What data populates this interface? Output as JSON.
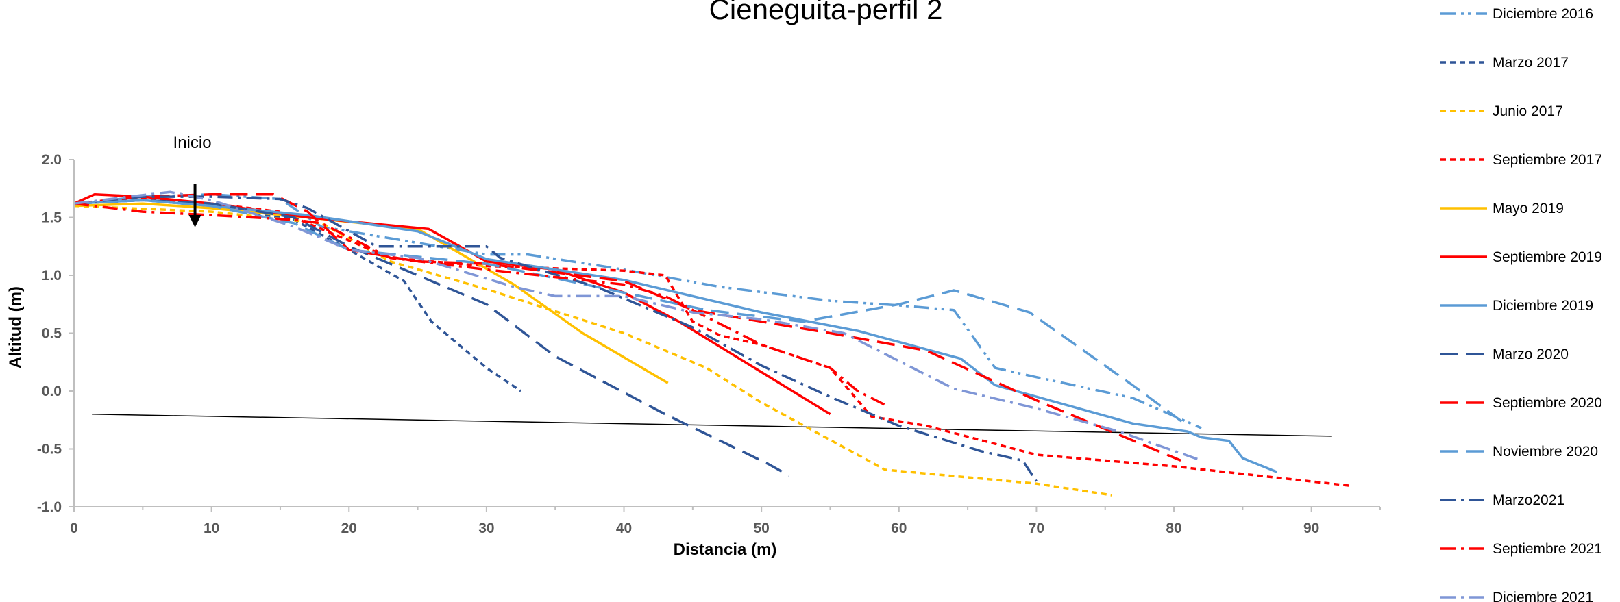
{
  "chart_data": {
    "type": "line",
    "title": "Cieneguita-perfil 2",
    "xlabel": "Distancia (m)",
    "ylabel": "Altitud (m)",
    "xlim": [
      0,
      95
    ],
    "ylim": [
      -1.0,
      2.0
    ],
    "xticks": [
      "0",
      "10",
      "20",
      "30",
      "40",
      "50",
      "60",
      "70",
      "80",
      "90"
    ],
    "yticks": [
      "-1.0",
      "-0.5",
      "0.0",
      "0.5",
      "1.0",
      "1.5",
      "2.0"
    ],
    "grid": false,
    "legend_position": "right",
    "annotation": {
      "text": "Inicio",
      "x": 8.8,
      "y": 1.78
    },
    "reference_line": {
      "x": [
        1.3,
        91.5
      ],
      "y": [
        -0.2,
        -0.39
      ],
      "color": "#000000"
    },
    "series": [
      {
        "name": "Diciembre 2016",
        "color": "#5b9bd5",
        "dash": "dashdotdot",
        "x": [
          0,
          5,
          10,
          15,
          18,
          25,
          30,
          33,
          40,
          47,
          55,
          60,
          64,
          67,
          70,
          77,
          82
        ],
        "y": [
          1.62,
          1.68,
          1.7,
          1.66,
          1.42,
          1.28,
          1.18,
          1.18,
          1.05,
          0.9,
          0.78,
          0.74,
          0.7,
          0.2,
          0.12,
          -0.06,
          -0.32
        ]
      },
      {
        "name": "Marzo 2017",
        "color": "#2f5597",
        "dash": "shortdash",
        "x": [
          0,
          5,
          10,
          16,
          20,
          24,
          26,
          30,
          32.5
        ],
        "y": [
          1.62,
          1.65,
          1.6,
          1.48,
          1.22,
          0.95,
          0.6,
          0.2,
          0.0
        ]
      },
      {
        "name": "Junio 2017",
        "color": "#ffc000",
        "dash": "shortdash",
        "x": [
          0,
          10,
          18,
          23,
          30,
          40,
          46,
          50,
          59,
          70,
          75.5
        ],
        "y": [
          1.6,
          1.55,
          1.45,
          1.12,
          0.88,
          0.5,
          0.2,
          -0.1,
          -0.68,
          -0.8,
          -0.9
        ]
      },
      {
        "name": "Septiembre 2017",
        "color": "#ff0000",
        "dash": "shortdash",
        "x": [
          0,
          5,
          10,
          15,
          18,
          23,
          30,
          40,
          43,
          45,
          47,
          50,
          55,
          58,
          62,
          70,
          80,
          93
        ],
        "y": [
          1.62,
          1.66,
          1.62,
          1.55,
          1.4,
          1.15,
          1.08,
          1.04,
          1.0,
          0.6,
          0.48,
          0.4,
          0.2,
          -0.22,
          -0.3,
          -0.55,
          -0.65,
          -0.82
        ]
      },
      {
        "name": "Mayo 2019",
        "color": "#ffc000",
        "dash": "solid",
        "x": [
          0,
          5,
          10,
          17,
          25,
          32,
          37,
          43.2
        ],
        "y": [
          1.6,
          1.62,
          1.58,
          1.5,
          1.4,
          0.92,
          0.5,
          0.07
        ]
      },
      {
        "name": "Septiembre 2019",
        "color": "#ff0000",
        "dash": "solid",
        "x": [
          0,
          1.5,
          5,
          10,
          17,
          25.8,
          30,
          35,
          40,
          44,
          55
        ],
        "y": [
          1.62,
          1.7,
          1.68,
          1.62,
          1.5,
          1.4,
          1.12,
          1.05,
          0.85,
          0.6,
          -0.2
        ]
      },
      {
        "name": "Diciembre 2019",
        "color": "#5b9bd5",
        "dash": "solid",
        "x": [
          0,
          5,
          10,
          17,
          25,
          30,
          40,
          50,
          57,
          64.5,
          67,
          77,
          81,
          82,
          84,
          85,
          87.5
        ],
        "y": [
          1.62,
          1.65,
          1.6,
          1.52,
          1.38,
          1.14,
          0.96,
          0.68,
          0.52,
          0.28,
          0.05,
          -0.28,
          -0.35,
          -0.4,
          -0.43,
          -0.58,
          -0.7
        ]
      },
      {
        "name": "Marzo 2020",
        "color": "#2f5597",
        "dash": "longdash",
        "x": [
          0,
          5,
          10,
          16,
          20,
          25,
          30,
          35,
          43,
          50.5,
          52
        ],
        "y": [
          1.62,
          1.65,
          1.62,
          1.5,
          1.25,
          1.0,
          0.75,
          0.3,
          -0.2,
          -0.63,
          -0.73
        ]
      },
      {
        "name": "Septiembre 2020",
        "color": "#ff0000",
        "dash": "longdash",
        "x": [
          0,
          5,
          10,
          14.5,
          17,
          20,
          25,
          30,
          40,
          45,
          55,
          62,
          70,
          80.5
        ],
        "y": [
          1.62,
          1.68,
          1.7,
          1.7,
          1.55,
          1.22,
          1.12,
          1.1,
          0.95,
          0.7,
          0.5,
          0.35,
          -0.08,
          -0.6
        ]
      },
      {
        "name": "Noviembre 2020",
        "color": "#5b9bd5",
        "dash": "longdash",
        "x": [
          0,
          5,
          10,
          16,
          20,
          30,
          40,
          46,
          53,
          60,
          64,
          69.5,
          77,
          81
        ],
        "y": [
          1.62,
          1.65,
          1.6,
          1.45,
          1.22,
          1.1,
          0.85,
          0.7,
          0.6,
          0.75,
          0.87,
          0.68,
          0.05,
          -0.3
        ]
      },
      {
        "name": "Marzo2021",
        "color": "#2f5597",
        "dash": "dashdot",
        "x": [
          0,
          5,
          10,
          15,
          17,
          22,
          30,
          31,
          38,
          45,
          50,
          55,
          60,
          66,
          69,
          70
        ],
        "y": [
          1.62,
          1.68,
          1.68,
          1.66,
          1.58,
          1.25,
          1.25,
          1.15,
          0.9,
          0.55,
          0.22,
          -0.05,
          -0.3,
          -0.52,
          -0.6,
          -0.78
        ]
      },
      {
        "name": "Septiembre 2021",
        "color": "#ff0000",
        "dash": "dashdot",
        "x": [
          0,
          5,
          10,
          16,
          18,
          23,
          30,
          40,
          43,
          50,
          55,
          57,
          59
        ],
        "y": [
          1.62,
          1.55,
          1.52,
          1.48,
          1.45,
          1.15,
          1.05,
          0.92,
          0.82,
          0.4,
          0.2,
          0.0,
          -0.12
        ]
      },
      {
        "name": "Diciembre 2021",
        "color": "#7f96d6",
        "dash": "dashdot",
        "x": [
          0,
          4,
          7,
          10,
          16,
          20,
          25,
          32,
          35,
          40,
          45,
          50,
          56,
          64,
          70,
          76,
          82
        ],
        "y": [
          1.62,
          1.68,
          1.72,
          1.65,
          1.42,
          1.22,
          1.15,
          0.9,
          0.82,
          0.82,
          0.68,
          0.62,
          0.5,
          0.02,
          -0.15,
          -0.35,
          -0.6
        ]
      }
    ]
  }
}
